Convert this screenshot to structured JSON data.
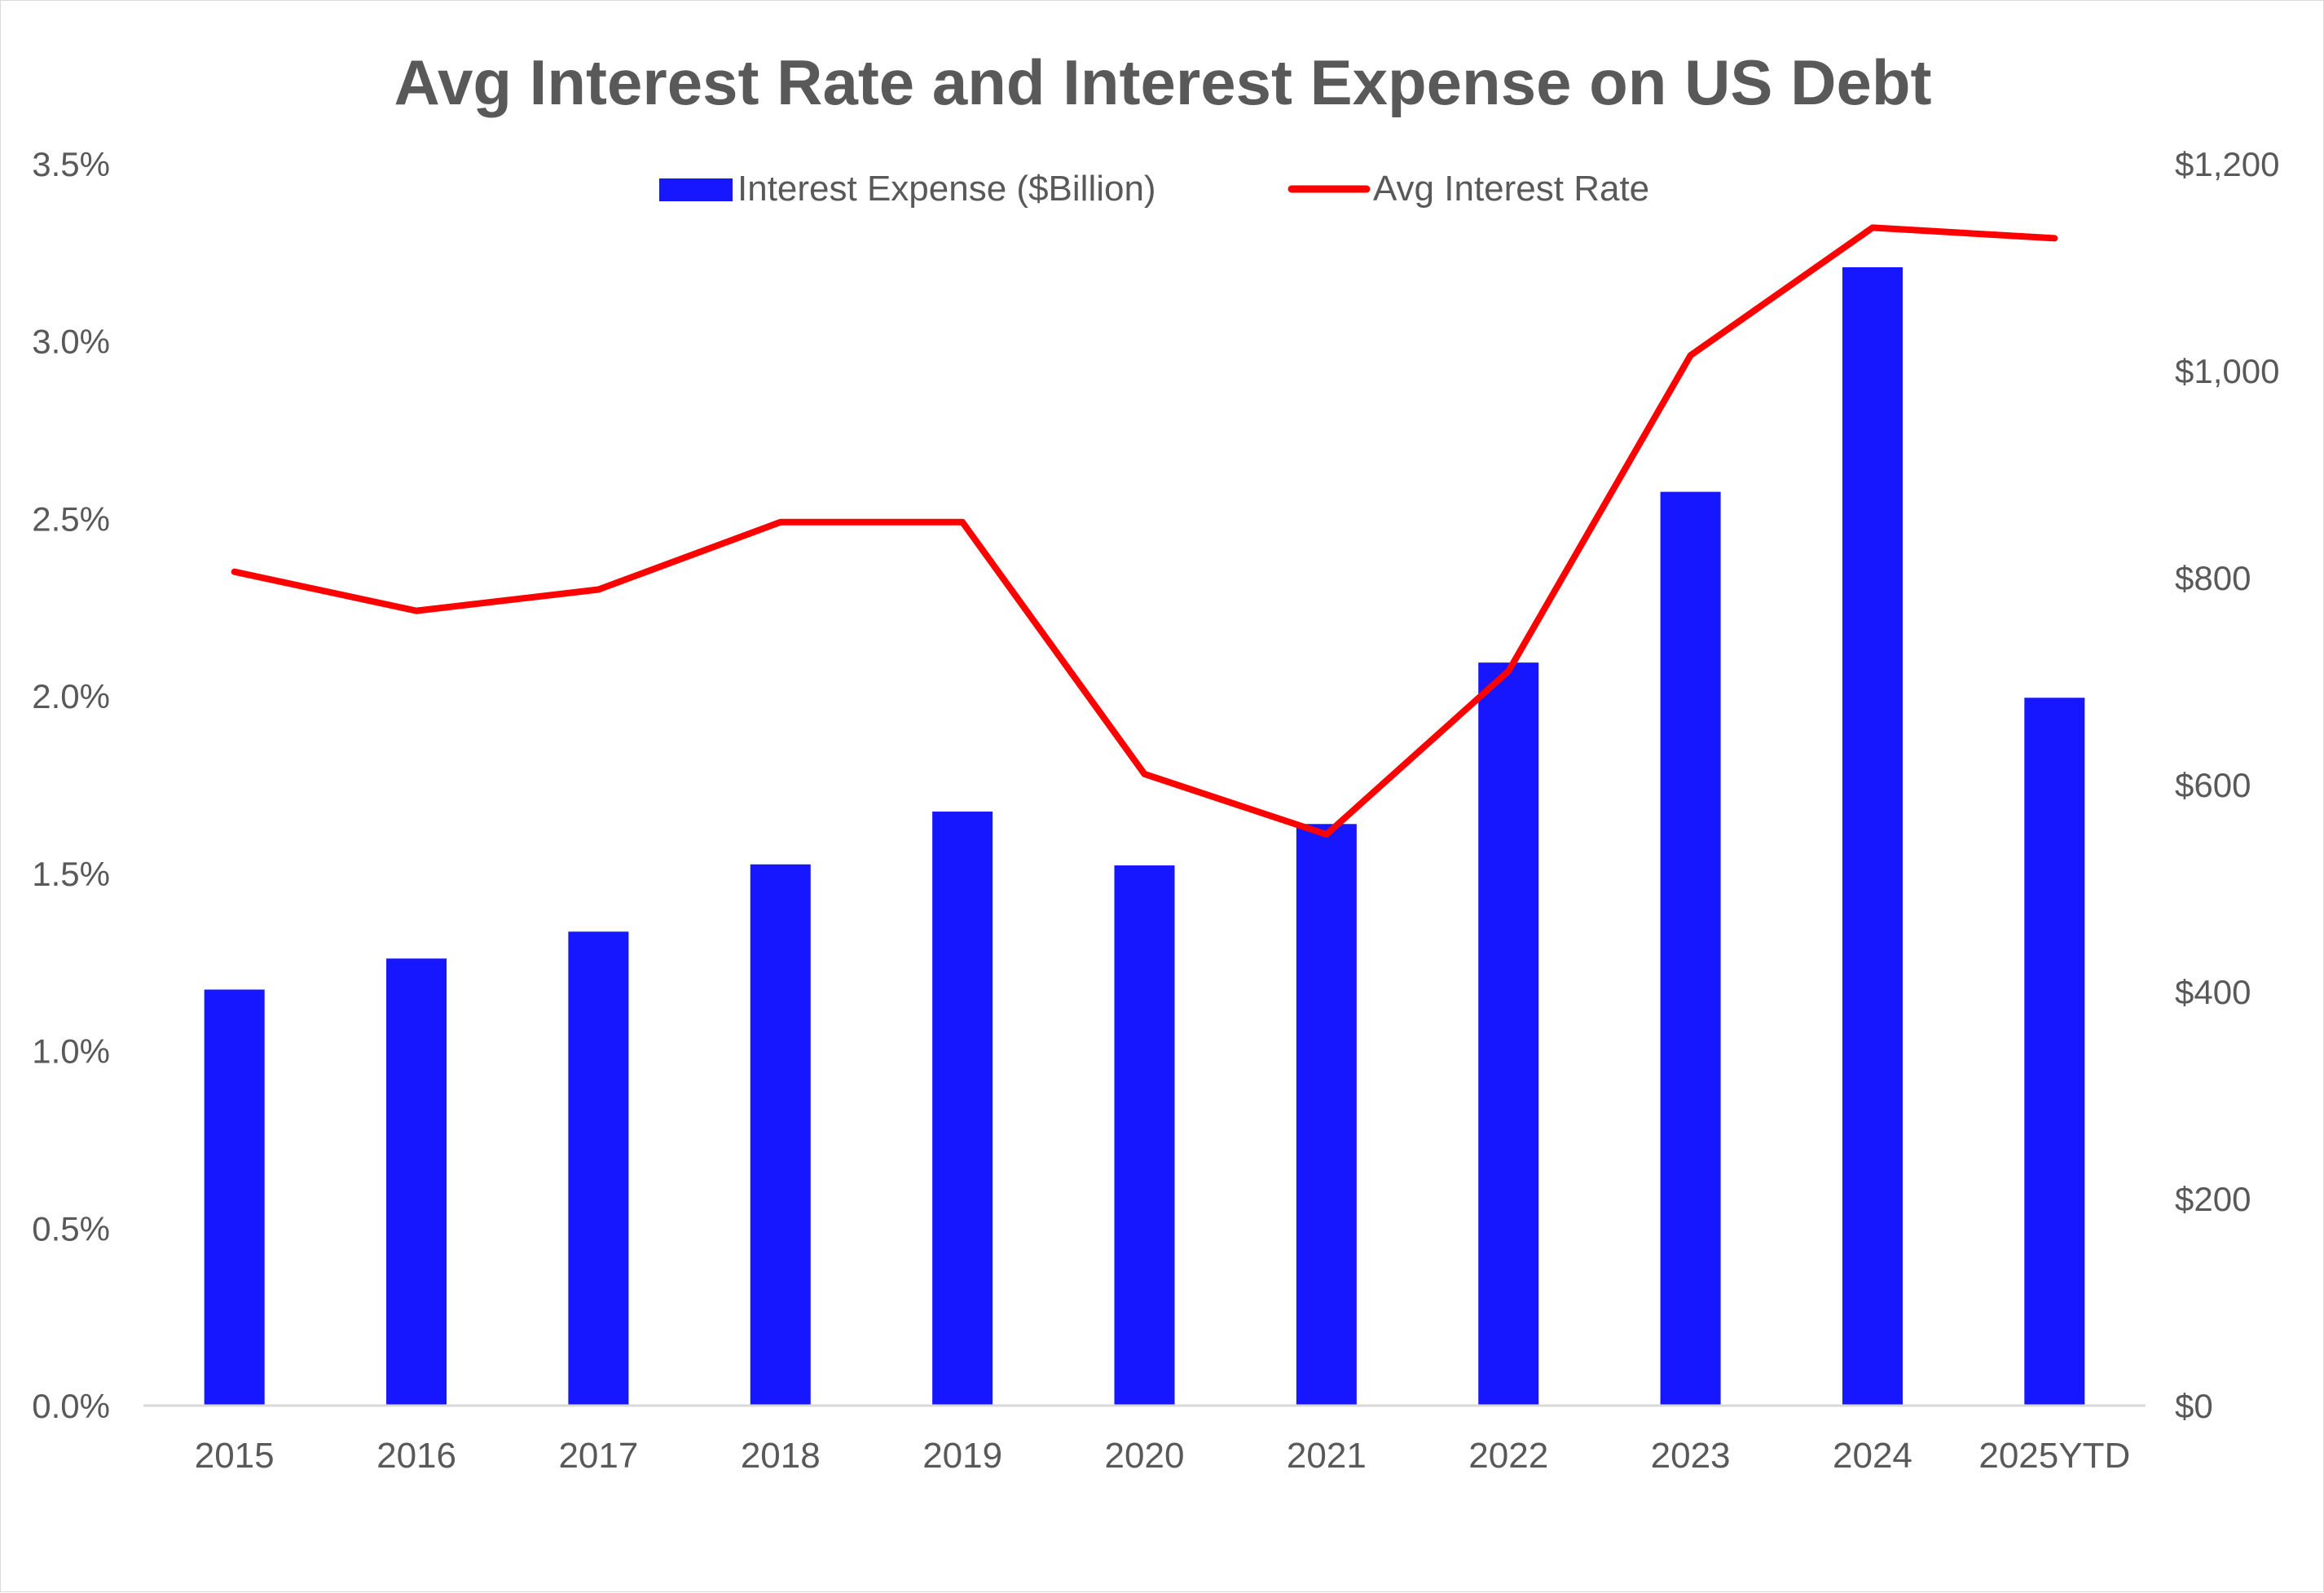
{
  "chart_data": {
    "type": "bar+line",
    "title": "Avg Interest Rate and Interest Expense on US Debt",
    "categories": [
      "2015",
      "2016",
      "2017",
      "2018",
      "2019",
      "2020",
      "2021",
      "2022",
      "2023",
      "2024",
      "2025YTD"
    ],
    "series": [
      {
        "name": "Interest Expense ($Billion)",
        "type": "bar",
        "axis": "right",
        "color": "#1616FF",
        "values": [
          402,
          432,
          458,
          523,
          574,
          522,
          562,
          718,
          883,
          1100,
          684
        ]
      },
      {
        "name": "Avg Interest Rate",
        "type": "line",
        "axis": "left",
        "color": "#FF0000",
        "values": [
          2.35,
          2.24,
          2.3,
          2.49,
          2.49,
          1.78,
          1.61,
          2.07,
          2.96,
          3.32,
          3.29
        ]
      }
    ],
    "y_left": {
      "min": 0,
      "max": 3.5,
      "ticks": [
        "0.0%",
        "0.5%",
        "1.0%",
        "1.5%",
        "2.0%",
        "2.5%",
        "3.0%",
        "3.5%"
      ]
    },
    "y_right": {
      "min": 0,
      "max": 1200,
      "ticks": [
        "$0",
        "$200",
        "$400",
        "$600",
        "$800",
        "$1,000",
        "$1,200"
      ]
    },
    "grid": false,
    "legend_position": "top-center"
  },
  "colors": {
    "bar": "#1616FF",
    "line": "#FF0000",
    "text": "#595959",
    "axis": "#d9d9d9"
  }
}
